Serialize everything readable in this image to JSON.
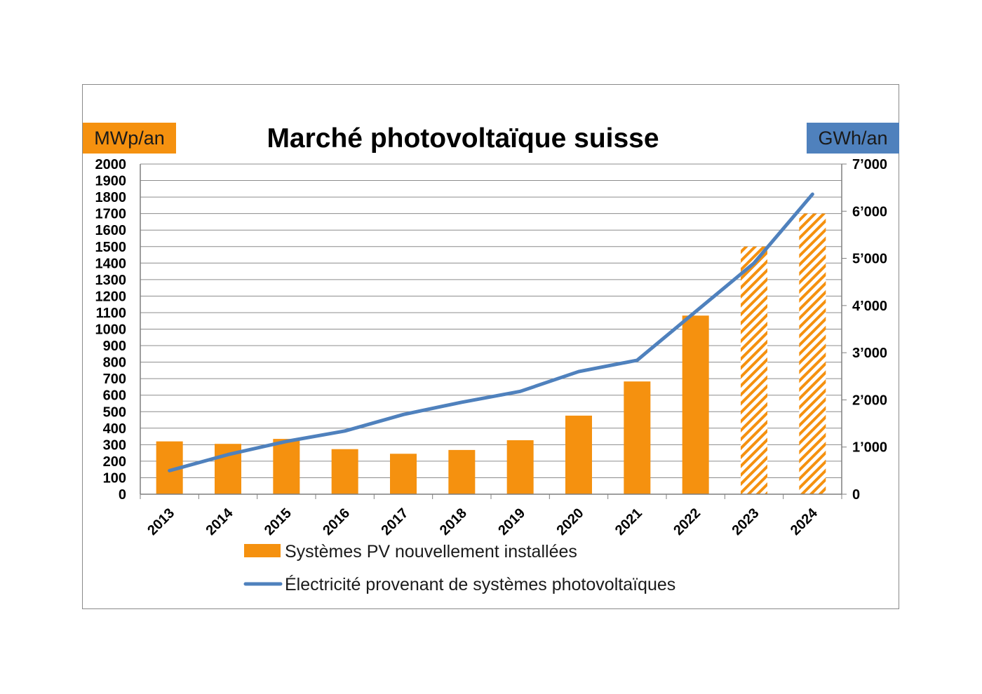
{
  "chart_data": {
    "type": "bar",
    "title": "Marché photovoltaïque suisse",
    "categories": [
      "2013",
      "2014",
      "2015",
      "2016",
      "2017",
      "2018",
      "2019",
      "2020",
      "2021",
      "2022",
      "2023",
      "2024"
    ],
    "y_left": {
      "unit": "MWp/an",
      "range": [
        0,
        2000
      ],
      "ticks": [
        "0",
        "100",
        "200",
        "300",
        "400",
        "500",
        "600",
        "700",
        "800",
        "900",
        "1000",
        "1100",
        "1200",
        "1300",
        "1400",
        "1500",
        "1600",
        "1700",
        "1800",
        "1900",
        "2000"
      ]
    },
    "y_right": {
      "unit": "GWh/an",
      "range": [
        0,
        7000
      ],
      "ticks": [
        "0",
        "1’000",
        "2’000",
        "3’000",
        "4’000",
        "5’000",
        "6’000",
        "7’000"
      ]
    },
    "series": [
      {
        "name": "Systèmes PV nouvellement installées",
        "type": "bar",
        "axis": "left",
        "values": [
          320,
          305,
          335,
          273,
          245,
          268,
          327,
          476,
          683,
          1082,
          1500,
          1700
        ],
        "estimated": [
          false,
          false,
          false,
          false,
          false,
          false,
          false,
          false,
          false,
          false,
          true,
          true
        ]
      },
      {
        "name": "Électricité provenant de systèmes photovoltaïques",
        "type": "line",
        "axis": "right",
        "values": [
          500,
          840,
          1120,
          1340,
          1690,
          1950,
          2180,
          2600,
          2840,
          3870,
          4900,
          6360
        ]
      }
    ],
    "grid": true,
    "legend": "bottom"
  },
  "colors": {
    "bar": "#f5910f",
    "line": "#4f81bd",
    "unit_left_bg": "#f5910f",
    "unit_right_bg": "#4f81bd",
    "grid": "#8c8c8c",
    "axis": "#7f7f7f",
    "text": "#000000"
  }
}
